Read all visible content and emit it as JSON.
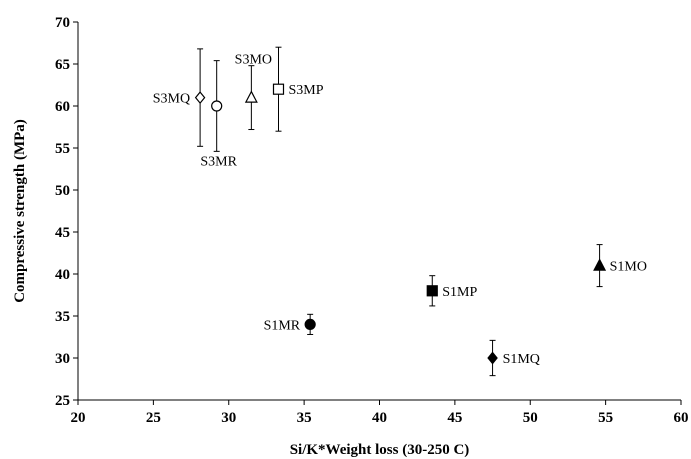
{
  "chart_data": {
    "type": "scatter",
    "xlabel": "Si/K*Weight loss (30-250 C)",
    "ylabel": "Compressive strength (MPa)",
    "xlim": [
      20,
      60
    ],
    "ylim": [
      25,
      70
    ],
    "xticks": [
      20,
      25,
      30,
      35,
      40,
      45,
      50,
      55,
      60
    ],
    "yticks": [
      25,
      30,
      35,
      40,
      45,
      50,
      55,
      60,
      65,
      70
    ],
    "grid": false,
    "points": [
      {
        "label": "S3MQ",
        "x": 28.1,
        "y": 61.0,
        "err": 5.8,
        "marker": "diamond",
        "filled": false,
        "label_pos": "left"
      },
      {
        "label": "S3MR",
        "x": 29.2,
        "y": 60.0,
        "err": 5.4,
        "marker": "circle",
        "filled": false,
        "label_pos": "below"
      },
      {
        "label": "S3MO",
        "x": 31.5,
        "y": 61.0,
        "err": 3.8,
        "marker": "triangle",
        "filled": false,
        "label_pos": "above"
      },
      {
        "label": "S3MP",
        "x": 33.3,
        "y": 62.0,
        "err": 5.0,
        "marker": "square",
        "filled": false,
        "label_pos": "right"
      },
      {
        "label": "S1MR",
        "x": 35.4,
        "y": 34.0,
        "err": 1.2,
        "marker": "circle",
        "filled": true,
        "label_pos": "left"
      },
      {
        "label": "S1MP",
        "x": 43.5,
        "y": 38.0,
        "err": 1.8,
        "marker": "square",
        "filled": true,
        "label_pos": "right"
      },
      {
        "label": "S1MQ",
        "x": 47.5,
        "y": 30.0,
        "err": 2.1,
        "marker": "diamond",
        "filled": true,
        "label_pos": "right"
      },
      {
        "label": "S1MO",
        "x": 54.6,
        "y": 41.0,
        "err": 2.5,
        "marker": "triangle",
        "filled": true,
        "label_pos": "right"
      }
    ]
  }
}
